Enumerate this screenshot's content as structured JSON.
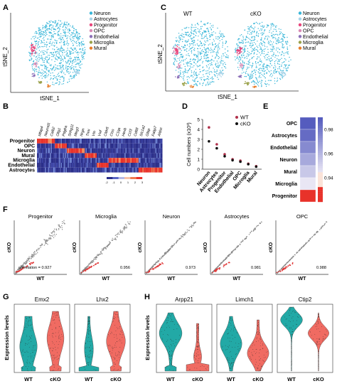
{
  "panels": {
    "A": {
      "letter": "A",
      "xlabel": "tSNE_1",
      "ylabel": "tSNE_2",
      "legend": [
        "Neuron",
        "Astrocytes",
        "Progenitor",
        "OPC",
        "Endothelial",
        "Microglia",
        "Mural"
      ]
    },
    "B": {
      "letter": "B",
      "rows": [
        "Progenitor",
        "OPC",
        "Neuron",
        "Mural",
        "Microglia",
        "Endothelial",
        "Astrocytes"
      ],
      "genes": [
        "Mfap4",
        "Neurod1",
        "Calb2",
        "Olig1",
        "Pdgfra",
        "Snhg11",
        "Meg3",
        "Nrgn",
        "Tnni",
        "Vtn",
        "Vwf",
        "Cldn5",
        "Ctss",
        "C1qa",
        "Hexb",
        "Ccl3",
        "Cd68",
        "Slc1a2",
        "Gfap",
        "Fabp7",
        "Aldoc"
      ],
      "scale": [
        "-2",
        "-1",
        "0",
        "1",
        "2",
        "3"
      ]
    },
    "C": {
      "letter": "C",
      "wt_title": "WT",
      "cko_title": "cKO",
      "xlabel": "tSNE_1",
      "ylabel": "tSNE_2",
      "legend": [
        "Neuron",
        "Astrocytes",
        "Progenitor",
        "OPC",
        "Endothelial",
        "Microglia",
        "Mural"
      ]
    },
    "D": {
      "letter": "D"
    },
    "E": {
      "letter": "E"
    },
    "F": {
      "letter": "F"
    },
    "G": {
      "letter": "G"
    },
    "H": {
      "letter": "H"
    }
  },
  "colors": {
    "neuron": "#37b5d8",
    "astrocytes": "#a9d3e8",
    "progenitor": "#e8467c",
    "opc": "#d98ab5",
    "endothelial": "#8b6fb8",
    "microglia": "#9aa14a",
    "mural": "#e87d2b",
    "violin_wt": "#22a9a6",
    "violin_cko": "#f06b62",
    "wt_dot": "#b0304a",
    "cko_dot": "#111111"
  },
  "chart_data": [
    {
      "type": "scatter",
      "panel": "D",
      "ylabel": "Cell numbers (x10³)",
      "categories": [
        "Neuron",
        "Astrocytes",
        "Progenitor",
        "Endothelial",
        "OPC",
        "Microglia",
        "Mural"
      ],
      "ylim": [
        0,
        5
      ],
      "yticks": [
        "0",
        "1",
        "2",
        "3",
        "4",
        "5"
      ],
      "legend": [
        "WT",
        "cKO"
      ],
      "series": [
        {
          "name": "WT",
          "values": [
            4.2,
            2.5,
            1.5,
            1.0,
            0.85,
            0.55,
            0.3
          ]
        },
        {
          "name": "cKO",
          "values": [
            2.8,
            2.1,
            1.3,
            0.9,
            0.75,
            0.5,
            0.25
          ]
        }
      ]
    },
    {
      "type": "heatmap",
      "panel": "E",
      "rows": [
        "OPC",
        "Astrocytes",
        "Endothelial",
        "Neuron",
        "Mural",
        "Microglia",
        "Progenitor"
      ],
      "values": [
        0.99,
        0.985,
        0.975,
        0.965,
        0.955,
        0.945,
        0.925
      ],
      "scale_ticks": [
        "0.98",
        "0.96",
        "0.94"
      ],
      "scale_range": [
        0.92,
        0.99
      ]
    },
    {
      "type": "scatter",
      "panel": "F",
      "xlabel": "WT",
      "ylabel": "cKO",
      "series": [
        {
          "name": "Progenitor",
          "correlation_text": "correlation = 0.927",
          "value": 0.927
        },
        {
          "name": "Microglia",
          "correlation_text": "0.956",
          "value": 0.956
        },
        {
          "name": "Neuron",
          "correlation_text": "0.973",
          "value": 0.973
        },
        {
          "name": "Astrocytes",
          "correlation_text": "0.981",
          "value": 0.981
        },
        {
          "name": "OPC",
          "correlation_text": "0.988",
          "value": 0.988
        }
      ]
    },
    {
      "type": "violin",
      "panel": "G",
      "ylabel": "Expression levels",
      "genes": [
        "Emx2",
        "Lhx2"
      ],
      "groups": [
        "WT",
        "cKO"
      ]
    },
    {
      "type": "violin",
      "panel": "H",
      "ylabel": "Expression levels",
      "genes": [
        "Arpp21",
        "Limch1",
        "Ctip2"
      ],
      "groups": [
        "WT",
        "cKO"
      ]
    }
  ]
}
